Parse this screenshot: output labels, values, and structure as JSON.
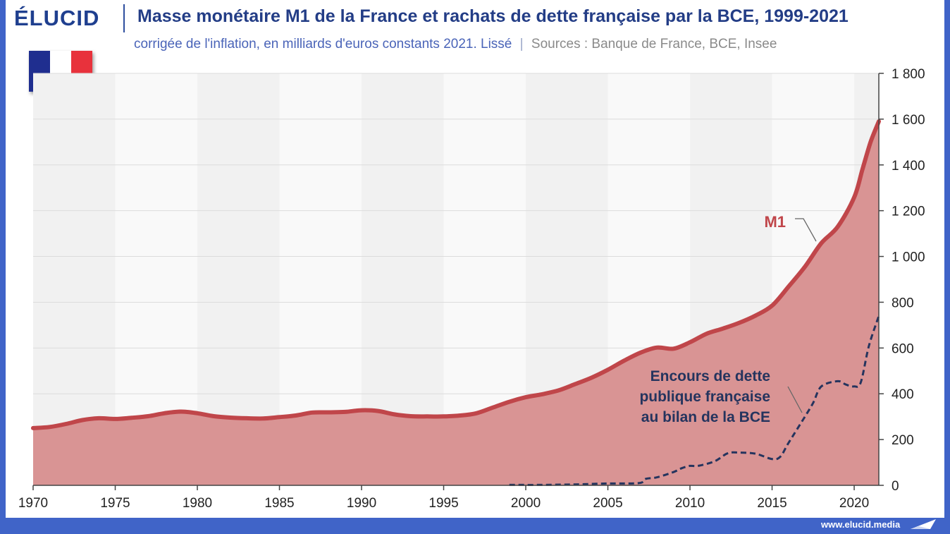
{
  "brand": {
    "name": "ÉLUCID",
    "website": "www.elucid.media"
  },
  "title": "Masse monétaire M1 de la France et rachats de dette française par la BCE, 1999-2021",
  "subtitle": {
    "text": "corrigée de l'inflation, en milliards d'euros constants 2021. Lissé",
    "separator": "|",
    "sources": "Sources : Banque de France, BCE, Insee"
  },
  "flag": {
    "country": "France",
    "colors": [
      "#1f2e8f",
      "#ffffff",
      "#e8323c"
    ]
  },
  "colors": {
    "m1_line": "#c0464a",
    "m1_fill": "#d99494",
    "ecb_line": "#25345e",
    "frame": "#4064c8",
    "title": "#233d86"
  },
  "chart_data": {
    "type": "area",
    "xlim": [
      1970,
      2021.5
    ],
    "ylim": [
      0,
      1800
    ],
    "x_ticks": [
      1970,
      1975,
      1980,
      1985,
      1990,
      1995,
      2000,
      2005,
      2010,
      2015,
      2020
    ],
    "x_tick_labels": [
      "1970",
      "1975",
      "1980",
      "1985",
      "1990",
      "1995",
      "2000",
      "2005",
      "2010",
      "2015",
      "2020"
    ],
    "y_ticks": [
      0,
      200,
      400,
      600,
      800,
      1000,
      1200,
      1400,
      1600,
      1800
    ],
    "y_tick_labels": [
      "0",
      "200",
      "400",
      "600",
      "800",
      "1 000",
      "1 200",
      "1 400",
      "1 600",
      "1 800"
    ],
    "alternating_year_bands": true,
    "series": [
      {
        "name": "M1",
        "style": "solid-area",
        "points": [
          [
            1970,
            250
          ],
          [
            1971,
            255
          ],
          [
            1972,
            268
          ],
          [
            1973,
            285
          ],
          [
            1974,
            293
          ],
          [
            1975,
            290
          ],
          [
            1976,
            295
          ],
          [
            1977,
            302
          ],
          [
            1978,
            315
          ],
          [
            1979,
            322
          ],
          [
            1980,
            315
          ],
          [
            1981,
            302
          ],
          [
            1982,
            296
          ],
          [
            1983,
            293
          ],
          [
            1984,
            292
          ],
          [
            1985,
            298
          ],
          [
            1986,
            305
          ],
          [
            1987,
            318
          ],
          [
            1988,
            319
          ],
          [
            1989,
            321
          ],
          [
            1990,
            328
          ],
          [
            1991,
            325
          ],
          [
            1992,
            310
          ],
          [
            1993,
            302
          ],
          [
            1994,
            301
          ],
          [
            1995,
            301
          ],
          [
            1996,
            305
          ],
          [
            1997,
            315
          ],
          [
            1998,
            340
          ],
          [
            1999,
            365
          ],
          [
            2000,
            385
          ],
          [
            2001,
            398
          ],
          [
            2002,
            415
          ],
          [
            2003,
            442
          ],
          [
            2004,
            470
          ],
          [
            2005,
            505
          ],
          [
            2006,
            545
          ],
          [
            2007,
            580
          ],
          [
            2008,
            602
          ],
          [
            2009,
            597
          ],
          [
            2010,
            625
          ],
          [
            2011,
            662
          ],
          [
            2012,
            685
          ],
          [
            2013,
            710
          ],
          [
            2014,
            742
          ],
          [
            2015,
            785
          ],
          [
            2016,
            868
          ],
          [
            2017,
            955
          ],
          [
            2018,
            1058
          ],
          [
            2019,
            1130
          ],
          [
            2020,
            1258
          ],
          [
            2020.5,
            1380
          ],
          [
            2021,
            1500
          ],
          [
            2021.5,
            1590
          ]
        ]
      },
      {
        "name": "Encours de dette publique française au bilan de la BCE",
        "style": "dashed-line",
        "points": [
          [
            1999,
            2
          ],
          [
            2001,
            2
          ],
          [
            2003,
            4
          ],
          [
            2005,
            8
          ],
          [
            2006.9,
            10
          ],
          [
            2007.3,
            28
          ],
          [
            2008,
            35
          ],
          [
            2009,
            58
          ],
          [
            2009.5,
            75
          ],
          [
            2010,
            85
          ],
          [
            2010.5,
            85
          ],
          [
            2011.5,
            105
          ],
          [
            2012.3,
            140
          ],
          [
            2013,
            143
          ],
          [
            2014,
            138
          ],
          [
            2015,
            115
          ],
          [
            2015.5,
            125
          ],
          [
            2016,
            185
          ],
          [
            2017,
            300
          ],
          [
            2017.5,
            360
          ],
          [
            2018,
            432
          ],
          [
            2019,
            455
          ],
          [
            2019.5,
            440
          ],
          [
            2020,
            432
          ],
          [
            2020.4,
            450
          ],
          [
            2020.9,
            610
          ],
          [
            2021.5,
            740
          ]
        ]
      }
    ],
    "annotations": {
      "m1_label": "M1",
      "ecb_label_lines": [
        "Encours de dette",
        "publique française",
        "au bilan de la BCE"
      ]
    }
  }
}
